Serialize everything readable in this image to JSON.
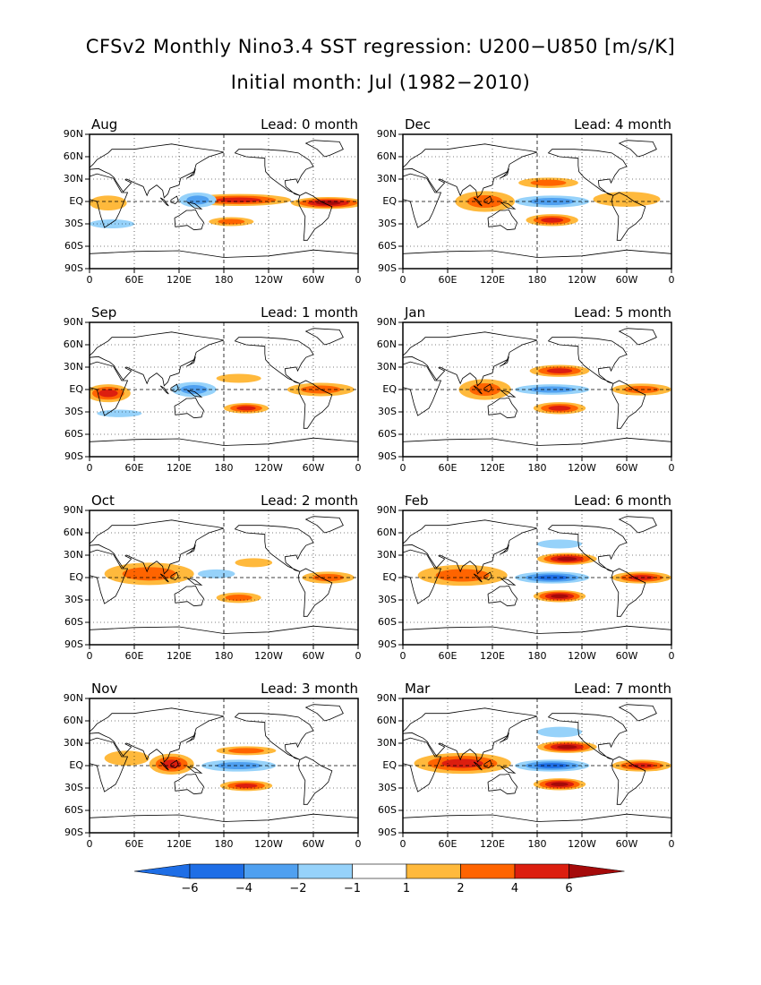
{
  "title": "CFSv2 Monthly Nino3.4 SST regression: U200−U850 [m/s/K]",
  "subtitle": "Initial month: Jul (1982−2010)",
  "colors": {
    "neg3": "#1e6ee6",
    "neg2": "#4fa0f0",
    "neg1": "#96d2fa",
    "zero": "#ffffff",
    "pos1": "#ffb93c",
    "pos2": "#ff6400",
    "pos3": "#dc1e0f",
    "pos4": "#a50a0a",
    "coast": "#000000"
  },
  "chart_data": {
    "type": "heatmap",
    "description_units": "m/s/K",
    "x_tick_labels": [
      "0",
      "60E",
      "120E",
      "180",
      "120W",
      "60W",
      "0"
    ],
    "y_tick_labels": [
      "90N",
      "60N",
      "30N",
      "EQ",
      "30S",
      "60S",
      "90S"
    ],
    "xlim": [
      0,
      360
    ],
    "ylim": [
      -90,
      90
    ],
    "colorbar": {
      "levels": [
        -6,
        -4,
        -2,
        -1,
        1,
        2,
        4,
        6
      ],
      "labels": [
        "−6",
        "−4",
        "−2",
        "−1",
        "1",
        "2",
        "4",
        "6"
      ]
    },
    "panels": [
      {
        "month": "Aug",
        "lead": "Lead: 0 month",
        "lead_months": 0,
        "features": [
          {
            "lon": 200,
            "lat": 2,
            "dlon": 70,
            "dlat": 8,
            "value": 3
          },
          {
            "lon": 320,
            "lat": -2,
            "dlon": 50,
            "dlat": 8,
            "value": 4
          },
          {
            "lon": 145,
            "lat": 2,
            "dlon": 25,
            "dlat": 10,
            "value": -2
          },
          {
            "lon": 190,
            "lat": -27,
            "dlon": 30,
            "dlat": 6,
            "value": 2
          },
          {
            "lon": 25,
            "lat": -2,
            "dlon": 25,
            "dlat": 10,
            "value": 1
          },
          {
            "lon": 30,
            "lat": -30,
            "dlon": 30,
            "dlat": 6,
            "value": -1
          }
        ]
      },
      {
        "month": "Dec",
        "lead": "Lead: 4 month",
        "lead_months": 4,
        "features": [
          {
            "lon": 200,
            "lat": 0,
            "dlon": 50,
            "dlat": 8,
            "value": -2
          },
          {
            "lon": 200,
            "lat": -25,
            "dlon": 35,
            "dlat": 8,
            "value": 3
          },
          {
            "lon": 195,
            "lat": 25,
            "dlon": 40,
            "dlat": 7,
            "value": 2
          },
          {
            "lon": 110,
            "lat": 0,
            "dlon": 40,
            "dlat": 14,
            "value": 2
          },
          {
            "lon": 300,
            "lat": 3,
            "dlon": 45,
            "dlat": 10,
            "value": 1
          }
        ]
      },
      {
        "month": "Sep",
        "lead": "Lead: 1 month",
        "lead_months": 1,
        "features": [
          {
            "lon": 25,
            "lat": -5,
            "dlon": 30,
            "dlat": 12,
            "value": 3
          },
          {
            "lon": 140,
            "lat": 0,
            "dlon": 30,
            "dlat": 10,
            "value": -2
          },
          {
            "lon": 210,
            "lat": -25,
            "dlon": 30,
            "dlat": 7,
            "value": 3
          },
          {
            "lon": 310,
            "lat": 0,
            "dlon": 45,
            "dlat": 9,
            "value": 2
          },
          {
            "lon": 200,
            "lat": 15,
            "dlon": 30,
            "dlat": 6,
            "value": 1
          },
          {
            "lon": 40,
            "lat": -32,
            "dlon": 30,
            "dlat": 5,
            "value": -1
          }
        ]
      },
      {
        "month": "Jan",
        "lead": "Lead: 5 month",
        "lead_months": 5,
        "features": [
          {
            "lon": 200,
            "lat": 0,
            "dlon": 50,
            "dlat": 7,
            "value": -2
          },
          {
            "lon": 210,
            "lat": 25,
            "dlon": 40,
            "dlat": 8,
            "value": 3
          },
          {
            "lon": 210,
            "lat": -25,
            "dlon": 35,
            "dlat": 8,
            "value": 3
          },
          {
            "lon": 110,
            "lat": 0,
            "dlon": 35,
            "dlat": 14,
            "value": 2
          },
          {
            "lon": 320,
            "lat": 0,
            "dlon": 40,
            "dlat": 8,
            "value": 2
          }
        ]
      },
      {
        "month": "Oct",
        "lead": "Lead: 2 month",
        "lead_months": 2,
        "features": [
          {
            "lon": 80,
            "lat": 5,
            "dlon": 60,
            "dlat": 15,
            "value": 2
          },
          {
            "lon": 170,
            "lat": 5,
            "dlon": 25,
            "dlat": 6,
            "value": -1
          },
          {
            "lon": 200,
            "lat": -27,
            "dlon": 30,
            "dlat": 7,
            "value": 2
          },
          {
            "lon": 220,
            "lat": 20,
            "dlon": 25,
            "dlat": 6,
            "value": 1
          },
          {
            "lon": 320,
            "lat": 0,
            "dlon": 35,
            "dlat": 8,
            "value": 2
          }
        ]
      },
      {
        "month": "Feb",
        "lead": "Lead: 6 month",
        "lead_months": 6,
        "features": [
          {
            "lon": 200,
            "lat": 0,
            "dlon": 50,
            "dlat": 8,
            "value": -3
          },
          {
            "lon": 220,
            "lat": 25,
            "dlon": 40,
            "dlat": 8,
            "value": 4
          },
          {
            "lon": 210,
            "lat": -25,
            "dlon": 35,
            "dlat": 8,
            "value": 4
          },
          {
            "lon": 80,
            "lat": 3,
            "dlon": 60,
            "dlat": 14,
            "value": 2
          },
          {
            "lon": 320,
            "lat": 0,
            "dlon": 40,
            "dlat": 8,
            "value": 3
          },
          {
            "lon": 210,
            "lat": 45,
            "dlon": 30,
            "dlat": 6,
            "value": -1
          }
        ]
      },
      {
        "month": "Nov",
        "lead": "Lead: 3 month",
        "lead_months": 3,
        "features": [
          {
            "lon": 200,
            "lat": 0,
            "dlon": 50,
            "dlat": 8,
            "value": -2
          },
          {
            "lon": 110,
            "lat": 2,
            "dlon": 30,
            "dlat": 14,
            "value": 3
          },
          {
            "lon": 210,
            "lat": -27,
            "dlon": 35,
            "dlat": 7,
            "value": 3
          },
          {
            "lon": 210,
            "lat": 20,
            "dlon": 40,
            "dlat": 6,
            "value": 2
          },
          {
            "lon": 50,
            "lat": 10,
            "dlon": 30,
            "dlat": 10,
            "value": 1
          }
        ]
      },
      {
        "month": "Mar",
        "lead": "Lead: 7 month",
        "lead_months": 7,
        "features": [
          {
            "lon": 200,
            "lat": 0,
            "dlon": 50,
            "dlat": 8,
            "value": -3
          },
          {
            "lon": 220,
            "lat": 25,
            "dlon": 40,
            "dlat": 8,
            "value": 4
          },
          {
            "lon": 210,
            "lat": -25,
            "dlon": 35,
            "dlat": 8,
            "value": 4
          },
          {
            "lon": 80,
            "lat": 3,
            "dlon": 65,
            "dlat": 14,
            "value": 3
          },
          {
            "lon": 320,
            "lat": 0,
            "dlon": 40,
            "dlat": 8,
            "value": 3
          },
          {
            "lon": 210,
            "lat": 45,
            "dlon": 30,
            "dlat": 7,
            "value": -1
          }
        ]
      }
    ]
  }
}
